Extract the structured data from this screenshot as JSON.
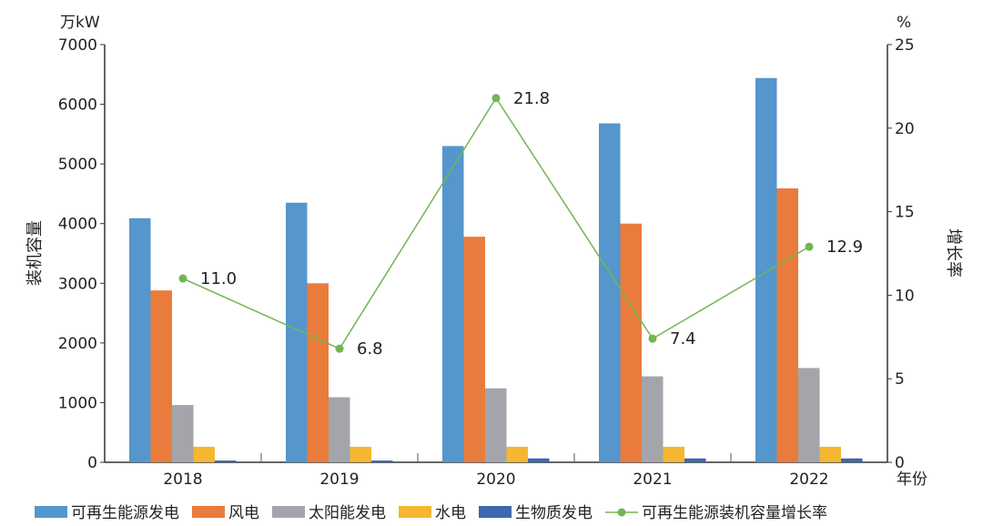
{
  "chart_data": {
    "type": "bar+line",
    "categories": [
      "2018",
      "2019",
      "2020",
      "2021",
      "2022"
    ],
    "xlabel": "年份",
    "ylabel_left": "装机容量",
    "unit_left": "万kW",
    "ylim_left": [
      0,
      7000
    ],
    "yticks_left": [
      "0",
      "1000",
      "2000",
      "3000",
      "4000",
      "5000",
      "6000",
      "7000"
    ],
    "ylabel_right": "增长率",
    "unit_right": "%",
    "ylim_right": [
      0,
      25
    ],
    "yticks_right": [
      "0",
      "5",
      "10",
      "15",
      "20",
      "25"
    ],
    "series": [
      {
        "name": "可再生能源发电",
        "type": "bar",
        "color": "#5596cd",
        "values": [
          4090,
          4350,
          5300,
          5680,
          6440
        ]
      },
      {
        "name": "风电",
        "type": "bar",
        "color": "#e97c3c",
        "values": [
          2880,
          3000,
          3780,
          4000,
          4590
        ]
      },
      {
        "name": "太阳能发电",
        "type": "bar",
        "color": "#a3a5aa",
        "values": [
          960,
          1090,
          1240,
          1440,
          1580
        ]
      },
      {
        "name": "水电",
        "type": "bar",
        "color": "#f5b731",
        "values": [
          260,
          260,
          260,
          260,
          260
        ]
      },
      {
        "name": "生物质发电",
        "type": "bar",
        "color": "#3f67ad",
        "values": [
          30,
          30,
          65,
          65,
          65
        ]
      },
      {
        "name": "可再生能源装机容量增长率",
        "type": "line",
        "axis": "right",
        "color": "#72b552",
        "values": [
          11.0,
          6.8,
          21.8,
          7.4,
          12.9
        ],
        "labels": [
          "11.0",
          "6.8",
          "21.8",
          "7.4",
          "12.9"
        ]
      }
    ],
    "legend": "bottom",
    "grid": false
  }
}
